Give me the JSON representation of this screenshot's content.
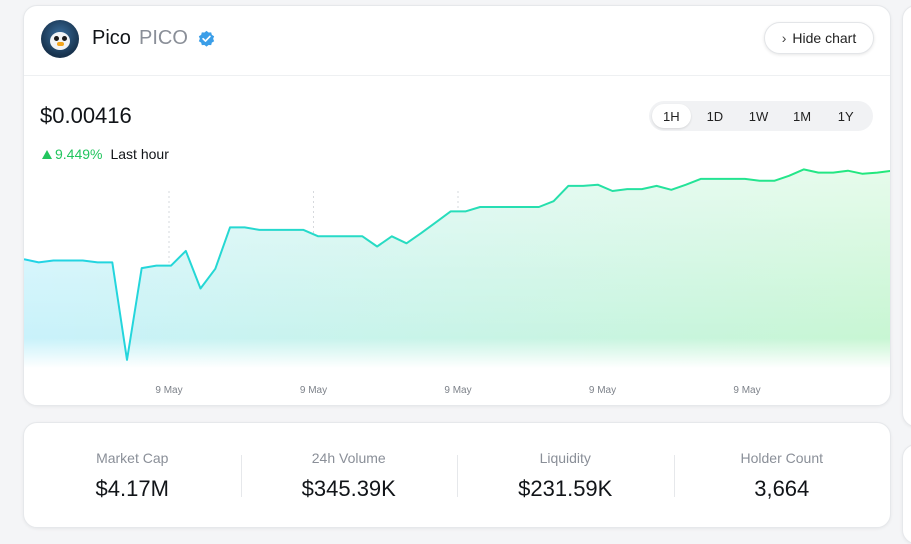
{
  "token": {
    "name": "Pico",
    "symbol": "PICO",
    "verified_icon": "verified-badge-icon",
    "avatar_icon": "penguin-avatar-icon"
  },
  "header": {
    "hide_chart_label": "Hide chart",
    "hide_chart_icon": "chevron-right-icon"
  },
  "price": {
    "value": "$0.00416",
    "change_pct": "9.449%",
    "change_label": "Last hour",
    "change_icon": "triangle-up-icon"
  },
  "timeframes": [
    {
      "label": "1H",
      "active": true
    },
    {
      "label": "1D",
      "active": false
    },
    {
      "label": "1W",
      "active": false
    },
    {
      "label": "1M",
      "active": false
    },
    {
      "label": "1Y",
      "active": false
    }
  ],
  "colors": {
    "up_green": "#22c55e",
    "line_start": "#22d3e6",
    "line_end": "#22e87a",
    "verified_blue": "#3b9ee8"
  },
  "chart_data": {
    "type": "line",
    "title": "",
    "xlabel": "",
    "ylabel": "",
    "x_tick_labels": [
      "9 May",
      "9 May",
      "9 May",
      "9 May",
      "9 May"
    ],
    "grid": "vertical dashed",
    "y_axis_visible": false,
    "series": [
      {
        "values": [
          0.00288,
          0.00283,
          0.00286,
          0.00286,
          0.00286,
          0.00283,
          0.00283,
          0.0013,
          0.00274,
          0.00278,
          0.00278,
          0.00301,
          0.00242,
          0.00273,
          0.00338,
          0.00338,
          0.00334,
          0.00334,
          0.00334,
          0.00334,
          0.00324,
          0.00324,
          0.00324,
          0.00324,
          0.00308,
          0.00324,
          0.00313,
          0.00329,
          0.00346,
          0.00363,
          0.00363,
          0.0037,
          0.0037,
          0.0037,
          0.0037,
          0.0037,
          0.00379,
          0.00403,
          0.00403,
          0.00405,
          0.00395,
          0.00398,
          0.00398,
          0.00403,
          0.00397,
          0.00405,
          0.00414,
          0.00414,
          0.00414,
          0.00414,
          0.00411,
          0.00411,
          0.00419,
          0.00429,
          0.00424,
          0.00424,
          0.00427,
          0.00422,
          0.00424,
          0.00427
        ]
      }
    ]
  },
  "stats": [
    {
      "label": "Market Cap",
      "value": "$4.17M"
    },
    {
      "label": "24h Volume",
      "value": "$345.39K"
    },
    {
      "label": "Liquidity",
      "value": "$231.59K"
    },
    {
      "label": "Holder Count",
      "value": "3,664"
    }
  ]
}
